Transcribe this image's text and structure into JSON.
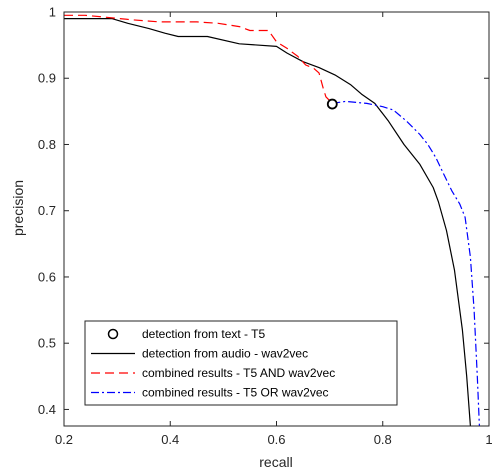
{
  "chart_data": {
    "type": "line",
    "xlabel": "recall",
    "ylabel": "precision",
    "xlim": [
      0.2,
      1.0
    ],
    "ylim": [
      0.375,
      1.0
    ],
    "xticks": [
      "0.2",
      "0.4",
      "0.6",
      "0.8",
      "1"
    ],
    "yticks": [
      "0.4",
      "0.5",
      "0.6",
      "0.7",
      "0.8",
      "0.9",
      "1"
    ],
    "grid": false,
    "legend_position": "bottom-left",
    "series": [
      {
        "name": "detection from text - T5",
        "style": "marker",
        "marker": "circle",
        "color": "#000000",
        "points": [
          [
            0.705,
            0.861
          ]
        ]
      },
      {
        "name": "detection from audio - wav2vec",
        "style": "solid",
        "color": "#000000",
        "points": [
          [
            0.2,
            0.99
          ],
          [
            0.29,
            0.99
          ],
          [
            0.32,
            0.983
          ],
          [
            0.36,
            0.975
          ],
          [
            0.39,
            0.968
          ],
          [
            0.415,
            0.963
          ],
          [
            0.47,
            0.963
          ],
          [
            0.53,
            0.952
          ],
          [
            0.6,
            0.948
          ],
          [
            0.62,
            0.938
          ],
          [
            0.65,
            0.925
          ],
          [
            0.68,
            0.916
          ],
          [
            0.71,
            0.905
          ],
          [
            0.74,
            0.89
          ],
          [
            0.76,
            0.876
          ],
          [
            0.785,
            0.862
          ],
          [
            0.81,
            0.836
          ],
          [
            0.84,
            0.8
          ],
          [
            0.87,
            0.77
          ],
          [
            0.895,
            0.735
          ],
          [
            0.905,
            0.713
          ],
          [
            0.92,
            0.67
          ],
          [
            0.935,
            0.61
          ],
          [
            0.95,
            0.52
          ],
          [
            0.958,
            0.45
          ],
          [
            0.965,
            0.375
          ]
        ]
      },
      {
        "name": "combined results - T5 AND wav2vec",
        "style": "dashed",
        "color": "#ff0000",
        "points": [
          [
            0.2,
            0.995
          ],
          [
            0.24,
            0.995
          ],
          [
            0.28,
            0.992
          ],
          [
            0.33,
            0.988
          ],
          [
            0.38,
            0.985
          ],
          [
            0.45,
            0.985
          ],
          [
            0.49,
            0.983
          ],
          [
            0.53,
            0.978
          ],
          [
            0.55,
            0.972
          ],
          [
            0.585,
            0.972
          ],
          [
            0.6,
            0.955
          ],
          [
            0.62,
            0.945
          ],
          [
            0.64,
            0.933
          ],
          [
            0.655,
            0.92
          ],
          [
            0.67,
            0.915
          ],
          [
            0.68,
            0.908
          ],
          [
            0.688,
            0.885
          ],
          [
            0.693,
            0.872
          ],
          [
            0.705,
            0.862
          ]
        ]
      },
      {
        "name": "combined results - T5 OR wav2vec",
        "style": "dashdot",
        "color": "#0000ff",
        "points": [
          [
            0.705,
            0.862
          ],
          [
            0.73,
            0.865
          ],
          [
            0.77,
            0.862
          ],
          [
            0.8,
            0.857
          ],
          [
            0.82,
            0.852
          ],
          [
            0.845,
            0.835
          ],
          [
            0.87,
            0.815
          ],
          [
            0.885,
            0.8
          ],
          [
            0.9,
            0.78
          ],
          [
            0.915,
            0.755
          ],
          [
            0.93,
            0.73
          ],
          [
            0.945,
            0.71
          ],
          [
            0.955,
            0.69
          ],
          [
            0.965,
            0.63
          ],
          [
            0.972,
            0.55
          ],
          [
            0.978,
            0.45
          ],
          [
            0.982,
            0.375
          ]
        ]
      }
    ]
  }
}
